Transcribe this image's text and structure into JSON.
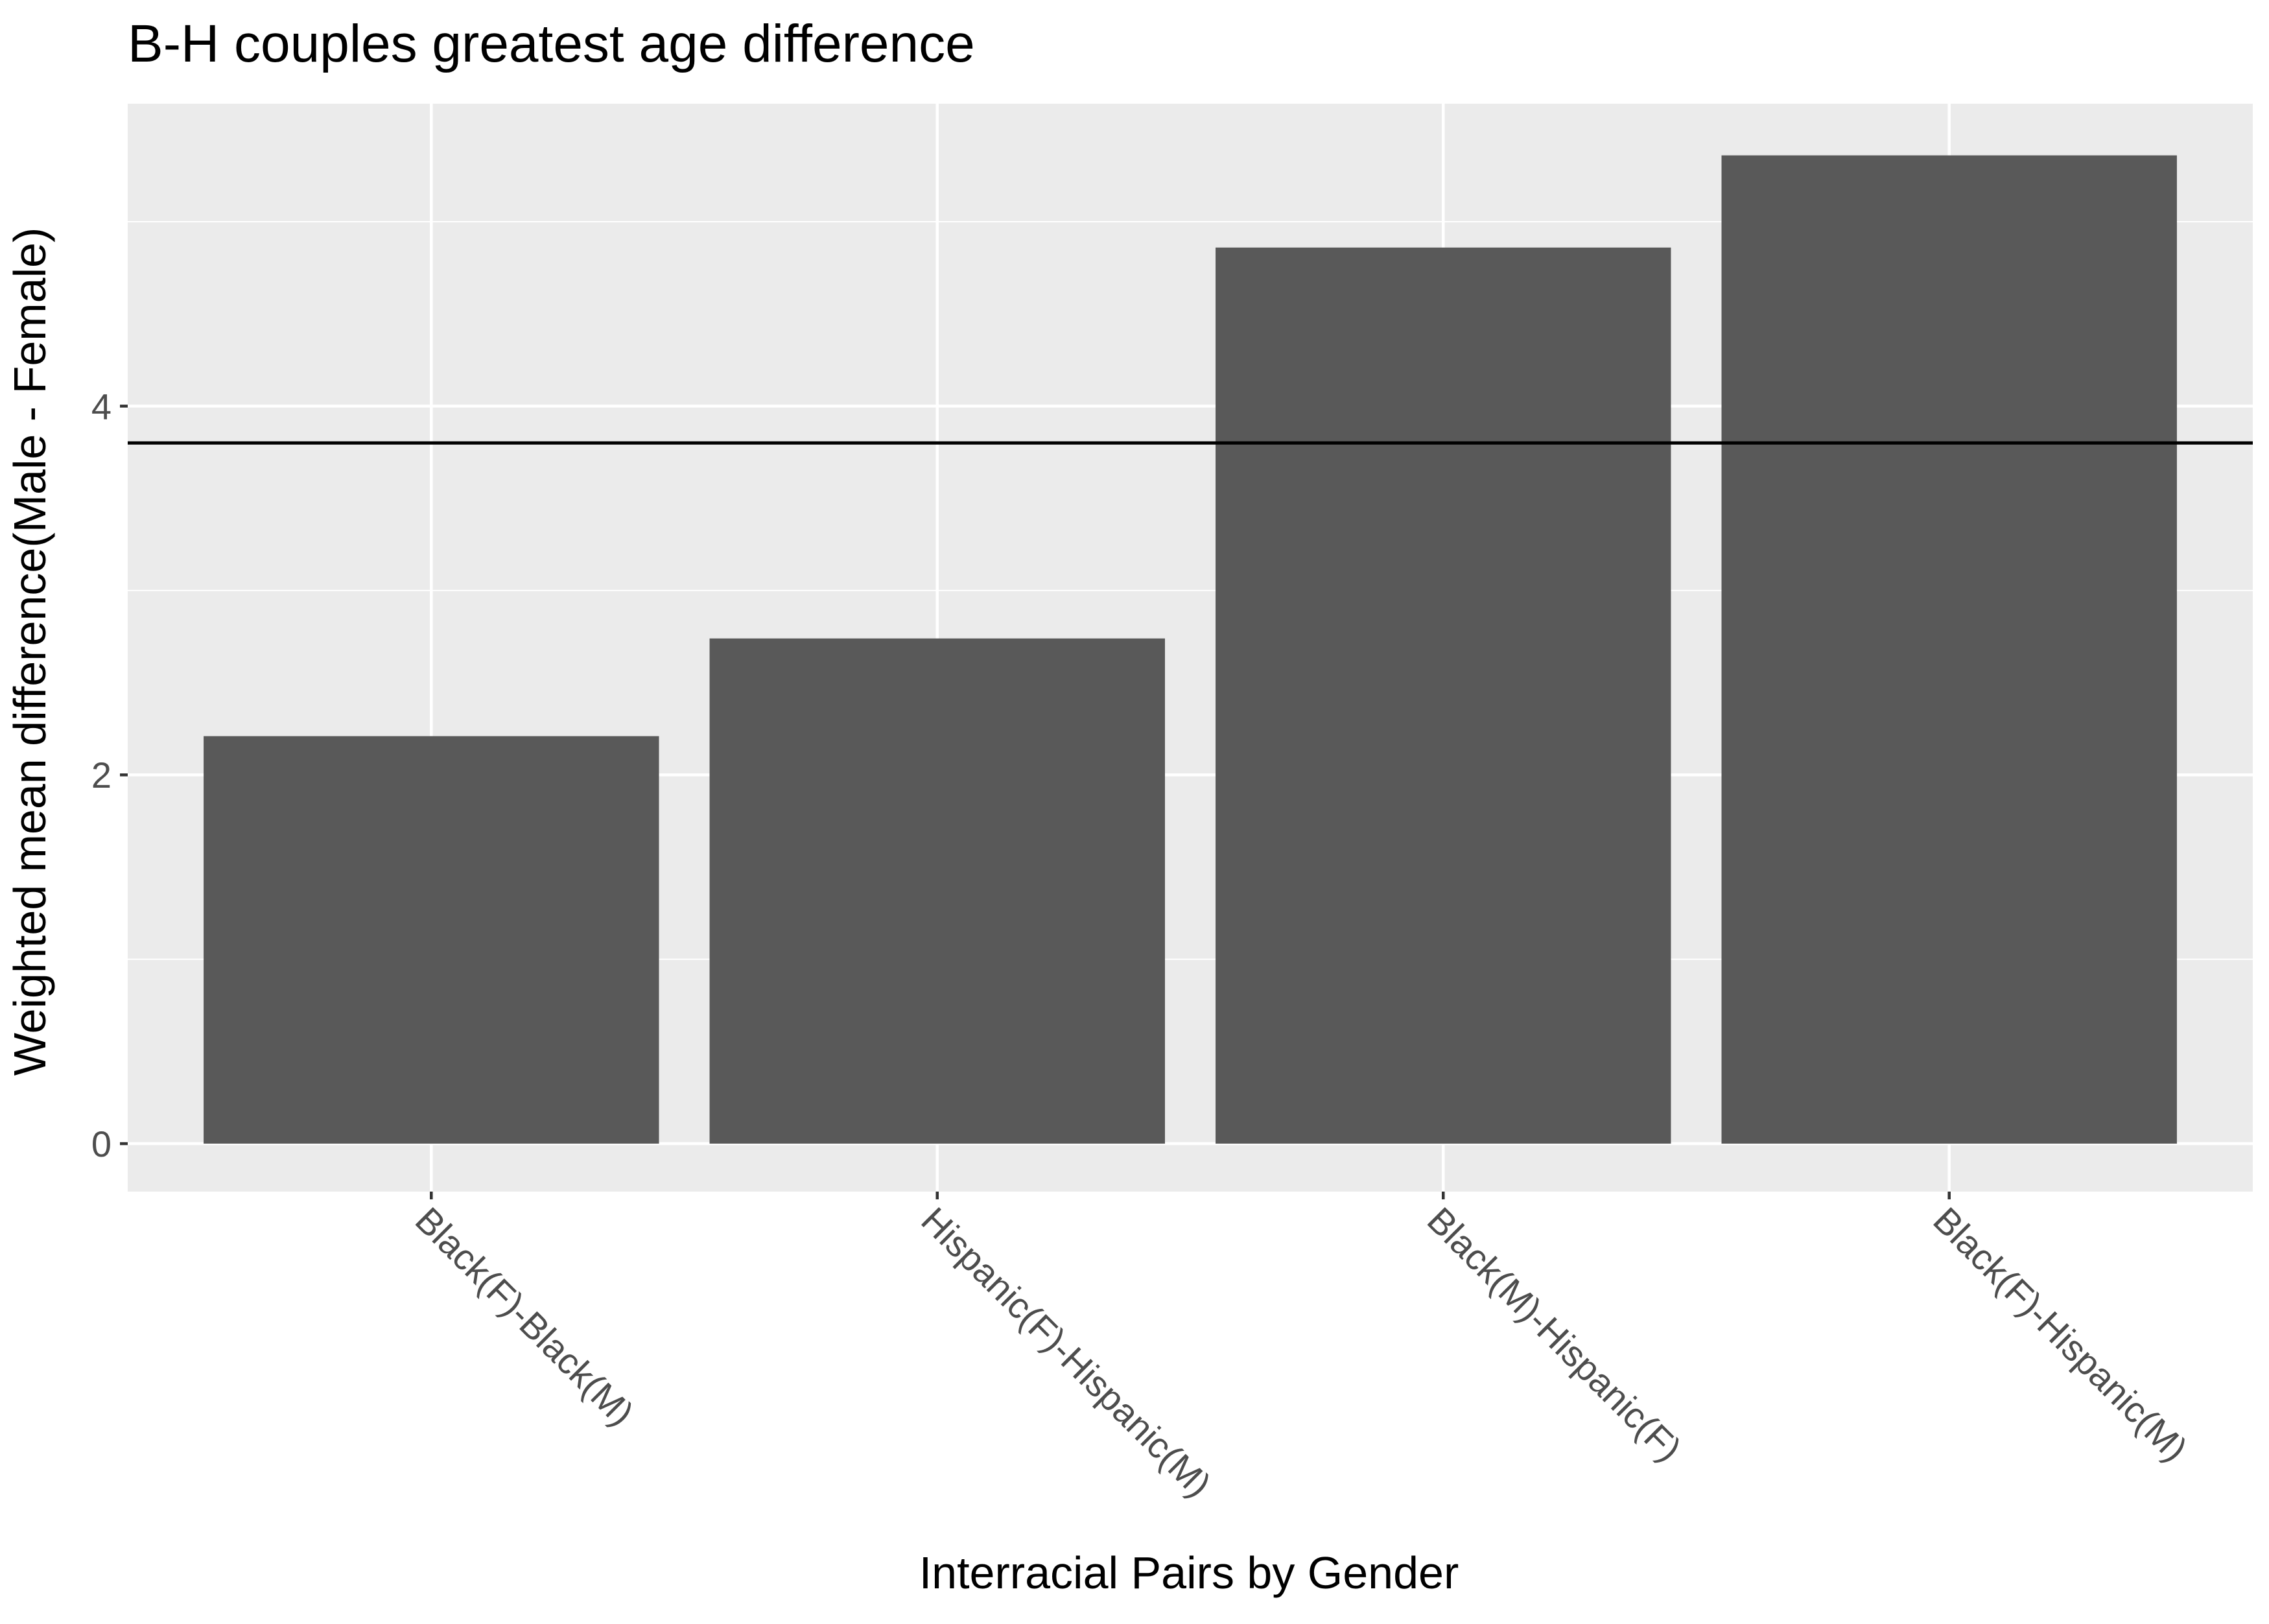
{
  "chart_data": {
    "type": "bar",
    "title": "B-H couples greatest age difference",
    "xlabel": "Interracial Pairs by Gender",
    "ylabel": "Weighted mean difference(Male - Female)",
    "categories": [
      "Black(F)-Black(M)",
      "Hispanic(F)-Hispanic(M)",
      "Black(M)-Hispanic(F)",
      "Black(F)-Hispanic(M)"
    ],
    "values": [
      2.21,
      2.74,
      4.86,
      5.36
    ],
    "reference_line": 3.8,
    "ylim": [
      -0.26,
      5.64
    ],
    "yticks": [
      0,
      2,
      4
    ],
    "grid": true,
    "colors": {
      "bar": "#595959",
      "panel": "#ebebeb",
      "grid": "#ffffff",
      "reference_line": "#000000",
      "tick_label": "#4d4d4d",
      "text": "#000000"
    }
  }
}
